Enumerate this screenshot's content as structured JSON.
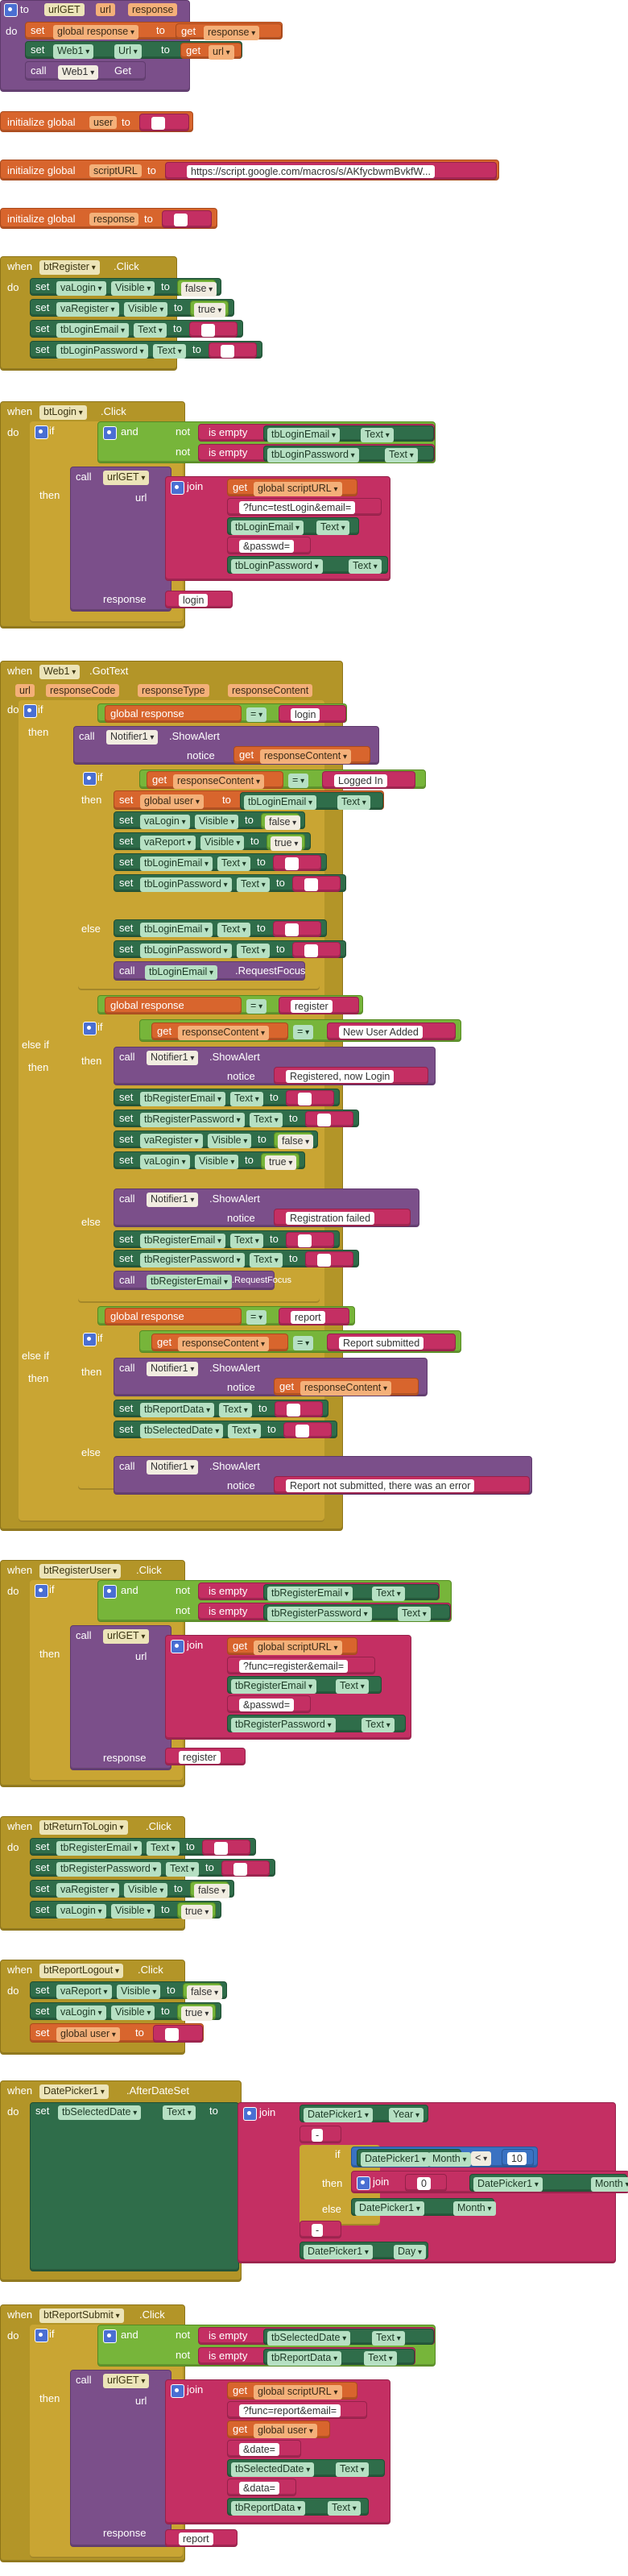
{
  "proc_urlGET": {
    "to": "to",
    "name": "urlGET",
    "p1": "url",
    "p2": "response",
    "do": "do",
    "set": "set",
    "global_response": "global response",
    "get": "get",
    "response": "response",
    "web1": "Web1",
    "url_prop": "Url",
    "get_url": "url",
    "call": "call",
    "get_method": "Get"
  },
  "init1": {
    "label": "initialize global",
    "name": "user",
    "to": "to"
  },
  "init2": {
    "label": "initialize global",
    "name": "scriptURL",
    "to": "to",
    "value": "https://script.google.com/macros/s/AKfycbwmBvkfW..."
  },
  "init3": {
    "label": "initialize global",
    "name": "response",
    "to": "to"
  },
  "ev_btRegister": {
    "when": "when",
    "comp": "btRegister",
    "evt": ".Click",
    "do": "do",
    "rows": [
      {
        "comp": "vaLogin",
        "prop": "Visible",
        "val": "false"
      },
      {
        "comp": "vaRegister",
        "prop": "Visible",
        "val": "true"
      },
      {
        "comp": "tbLoginEmail",
        "prop": "Text",
        "val": ""
      },
      {
        "comp": "tbLoginPassword",
        "prop": "Text",
        "val": ""
      }
    ]
  },
  "ev_btLogin": {
    "when": "when",
    "comp": "btLogin",
    "evt": ".Click",
    "do": "do",
    "if": "if",
    "and": "and",
    "not": "not",
    "is_empty": "is empty",
    "c1": "tbLoginEmail",
    "c2": "tbLoginPassword",
    "text": "Text",
    "then": "then",
    "call": "call",
    "urlGET": "urlGET",
    "url": "url",
    "join": "join",
    "get": "get",
    "gsu": "global scriptURL",
    "s1": "?func=testLogin&email=",
    "s2": "&passwd=",
    "response": "response",
    "resp_val": "login"
  },
  "ev_web1": {
    "when": "when",
    "comp": "Web1",
    "evt": ".GotText",
    "params": [
      "url",
      "responseCode",
      "responseType",
      "responseContent"
    ],
    "do": "do",
    "if": "if",
    "then": "then",
    "else": "else",
    "else_if": "else if",
    "get_gr": "global response",
    "eq": "=",
    "login": "login",
    "register": "register",
    "report": "report",
    "notifier": "Notifier1",
    "showalert": ".ShowAlert",
    "notice": "notice",
    "get_rc": "responseContent",
    "logged_in": "Logged In",
    "global_user": "global user",
    "tbLoginEmail": "tbLoginEmail",
    "text": "Text",
    "vaLogin": "vaLogin",
    "vaReport": "vaReport",
    "visible": "Visible",
    "false": "false",
    "true": "true",
    "tbLoginPassword": "tbLoginPassword",
    "request_focus": ".RequestFocus",
    "new_user_added": "New User Added",
    "registered_now_login": "Registered, now Login",
    "tbRegisterEmail": "tbRegisterEmail",
    "tbRegisterPassword": "tbRegisterPassword",
    "vaRegister": "vaRegister",
    "registration_failed": "Registration failed",
    "report_submitted": "Report submitted",
    "tbReportData": "tbReportData",
    "tbSelectedDate": "tbSelectedDate",
    "report_not_submitted": "Report not submitted, there was an error"
  },
  "ev_btRegisterUser": {
    "when": "when",
    "comp": "btRegisterUser",
    "evt": ".Click",
    "do": "do",
    "if": "if",
    "and": "and",
    "not": "not",
    "is_empty": "is empty",
    "c1": "tbRegisterEmail",
    "c2": "tbRegisterPassword",
    "text": "Text",
    "then": "then",
    "call": "call",
    "urlGET": "urlGET",
    "url": "url",
    "join": "join",
    "get": "get",
    "gsu": "global scriptURL",
    "s1": "?func=register&email=",
    "s2": "&passwd=",
    "response": "response",
    "resp_val": "register"
  },
  "ev_btReturnToLogin": {
    "when": "when",
    "comp": "btReturnToLogin",
    "evt": ".Click",
    "do": "do",
    "rows": [
      {
        "comp": "tbRegisterEmail",
        "prop": "Text",
        "val": ""
      },
      {
        "comp": "tbRegisterPassword",
        "prop": "Text",
        "val": ""
      },
      {
        "comp": "vaRegister",
        "prop": "Visible",
        "val": "false"
      },
      {
        "comp": "vaLogin",
        "prop": "Visible",
        "val": "true"
      }
    ]
  },
  "ev_btReportLogout": {
    "when": "when",
    "comp": "btReportLogout",
    "evt": ".Click",
    "do": "do",
    "rows": [
      {
        "comp": "vaReport",
        "prop": "Visible",
        "val": "false"
      },
      {
        "comp": "vaLogin",
        "prop": "Visible",
        "val": "true"
      }
    ],
    "global_user": "global user",
    "to": "to"
  },
  "ev_datepicker": {
    "when": "when",
    "comp": "DatePicker1",
    "evt": ".AfterDateSet",
    "do": "do",
    "set": "set",
    "target": "tbSelectedDate",
    "text": "Text",
    "to": "to",
    "join": "join",
    "dp": "DatePicker1",
    "year": "Year",
    "dash": "-",
    "if": "if",
    "month": "Month",
    "lt": "<",
    "ten": "10",
    "then": "then",
    "zero": "0",
    "else": "else",
    "day": "Day"
  },
  "ev_btReportSubmit": {
    "when": "when",
    "comp": "btReportSubmit",
    "evt": ".Click",
    "do": "do",
    "if": "if",
    "and": "and",
    "not": "not",
    "is_empty": "is empty",
    "c1": "tbSelectedDate",
    "c2": "tbReportData",
    "text": "Text",
    "then": "then",
    "call": "call",
    "urlGET": "urlGET",
    "url": "url",
    "join": "join",
    "get": "get",
    "gsu": "global scriptURL",
    "s1": "?func=report&email=",
    "global_user": "global user",
    "s2": "&date=",
    "c3": "tbSelectedDate",
    "s3": "&data=",
    "c4": "tbReportData",
    "response": "response",
    "resp_val": "report"
  },
  "colors": {
    "event": "#b39528",
    "procedure": "#7b4f8a",
    "variable": "#d8652d",
    "component": "#2f6d4a",
    "text": "#c42f63",
    "logic": "#77b53a",
    "math": "#3a72c2"
  }
}
